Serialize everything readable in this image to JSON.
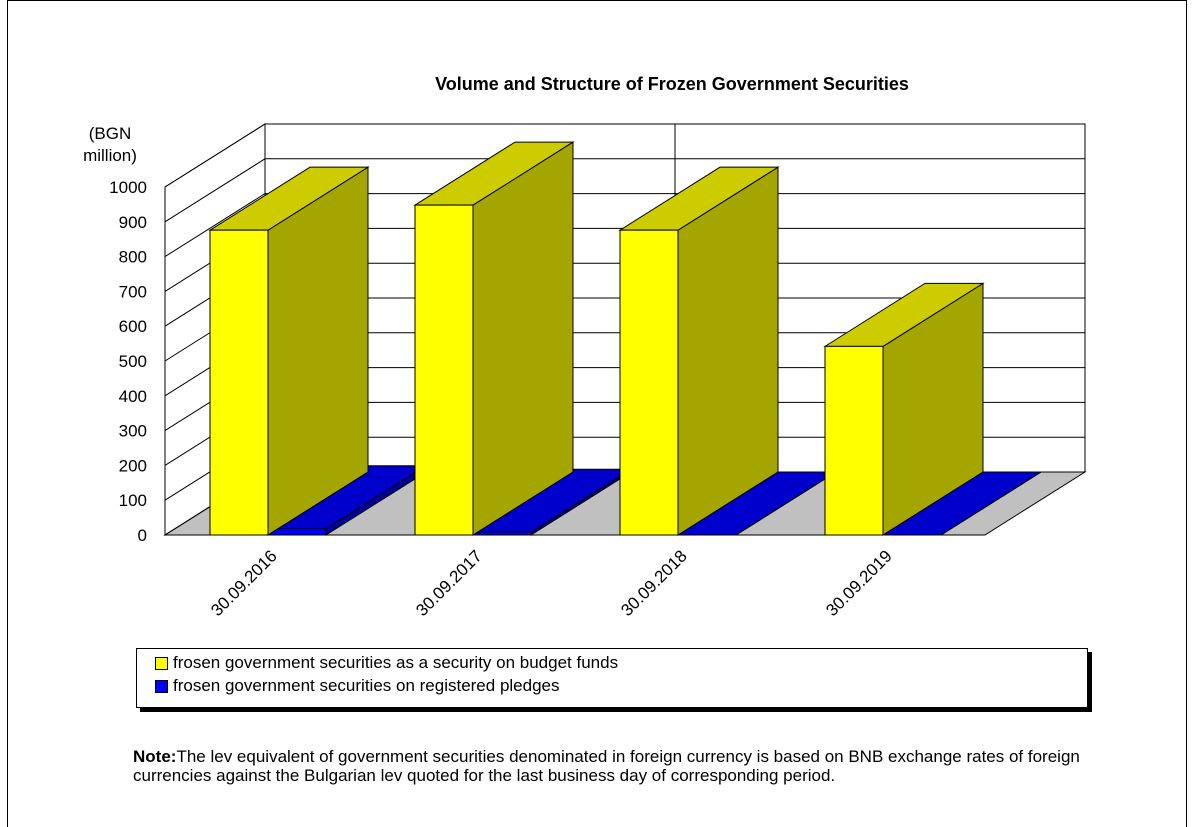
{
  "chart_data": {
    "type": "bar",
    "title": "Volume and Structure of Frozen Government Securities",
    "ylabel": "(BGN million)",
    "ylabel_lines": [
      "(BGN",
      "million)"
    ],
    "ylim": [
      0,
      1000
    ],
    "yticks": [
      0,
      100,
      200,
      300,
      400,
      500,
      600,
      700,
      800,
      900,
      1000
    ],
    "categories": [
      "30.09.2016",
      "30.09.2017",
      "30.09.2018",
      "30.09.2019"
    ],
    "series": [
      {
        "name": "frosen government securities as a security on budget funds",
        "color": "#ffff00",
        "side_color": "#a5a500",
        "top_color": "#cccc00",
        "values": [
          876,
          948,
          876,
          542
        ]
      },
      {
        "name": "frosen government securities on registered pledges",
        "color": "#0000ff",
        "side_color": "#0000a0",
        "top_color": "#0000cc",
        "values": [
          18,
          8,
          0,
          0
        ]
      }
    ],
    "grid": true,
    "projection": "3d",
    "legend_position": "bottom"
  },
  "note": {
    "label": "Note:",
    "text": "The lev equivalent of government securities denominated in foreign currency is based on BNB exchange rates of foreign currencies against the Bulgarian lev quoted for the last business day of corresponding period."
  }
}
